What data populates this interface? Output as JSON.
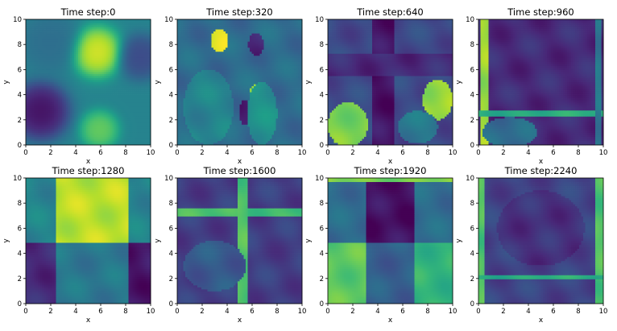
{
  "chart_data": {
    "type": "heatmap",
    "colormap": "viridis",
    "grid": false,
    "panels": [
      {
        "title": "Time step:0",
        "xlabel": "x",
        "ylabel": "y",
        "xlim": [
          0,
          10
        ],
        "ylim": [
          0,
          10
        ],
        "xticks": [
          "0",
          "2",
          "4",
          "6",
          "8",
          "10"
        ],
        "yticks": [
          "0",
          "2",
          "4",
          "6",
          "8",
          "10"
        ],
        "field": "smooth",
        "features": [
          {
            "x": 5.7,
            "y": 7.4,
            "value": 1.0,
            "spread": 1.3
          },
          {
            "x": 1.2,
            "y": 2.7,
            "value": 0.0,
            "spread": 1.5
          },
          {
            "x": 5.9,
            "y": 1.2,
            "value": 0.8,
            "spread": 1.0
          },
          {
            "x": 2.0,
            "y": 8.2,
            "value": 0.35,
            "spread": 1.6
          },
          {
            "x": 9.2,
            "y": 7.0,
            "value": 0.2,
            "spread": 1.2
          }
        ]
      },
      {
        "title": "Time step:320",
        "xlabel": "x",
        "ylabel": "y",
        "xlim": [
          0,
          10
        ],
        "ylim": [
          0,
          10
        ],
        "xticks": [
          "0",
          "2",
          "4",
          "6",
          "8",
          "10"
        ],
        "yticks": [
          "0",
          "2",
          "4",
          "6",
          "8",
          "10"
        ],
        "field": "regions",
        "background": 0.35,
        "features": [
          {
            "kind": "blob",
            "x": 3.4,
            "y": 8.3,
            "rx": 0.7,
            "ry": 0.9,
            "value": 0.95
          },
          {
            "kind": "blob",
            "x": 6.3,
            "y": 4.0,
            "rx": 0.5,
            "ry": 0.8,
            "value": 0.8
          },
          {
            "kind": "blob",
            "x": 5.4,
            "y": 2.6,
            "rx": 0.4,
            "ry": 1.0,
            "value": 0.1
          },
          {
            "kind": "blob",
            "x": 6.3,
            "y": 8.0,
            "rx": 0.6,
            "ry": 0.9,
            "value": 0.12
          },
          {
            "kind": "blob",
            "x": 6.8,
            "y": 2.5,
            "rx": 1.2,
            "ry": 2.5,
            "value": 0.5
          },
          {
            "kind": "blob",
            "x": 2.5,
            "y": 3.0,
            "rx": 2.0,
            "ry": 3.0,
            "value": 0.45
          }
        ]
      },
      {
        "title": "Time step:640",
        "xlabel": "x",
        "ylabel": "y",
        "xlim": [
          0,
          10
        ],
        "ylim": [
          0,
          10
        ],
        "xticks": [
          "0",
          "2",
          "4",
          "6",
          "8",
          "10"
        ],
        "yticks": [
          "0",
          "2",
          "4",
          "6",
          "8",
          "10"
        ],
        "field": "regions",
        "background": 0.22,
        "features": [
          {
            "kind": "vband",
            "x0": 3.6,
            "x1": 5.4,
            "value": 0.05
          },
          {
            "kind": "hband",
            "y0": 5.5,
            "y1": 7.3,
            "value": 0.12
          },
          {
            "kind": "blob",
            "x": 1.6,
            "y": 1.6,
            "rx": 1.6,
            "ry": 1.8,
            "value": 0.8
          },
          {
            "kind": "blob",
            "x": 8.8,
            "y": 3.6,
            "rx": 1.2,
            "ry": 1.6,
            "value": 0.85
          },
          {
            "kind": "blob",
            "x": 7.2,
            "y": 1.4,
            "rx": 1.6,
            "ry": 1.3,
            "value": 0.4
          }
        ]
      },
      {
        "title": "Time step:960",
        "xlabel": "x",
        "ylabel": "y",
        "xlim": [
          0,
          10
        ],
        "ylim": [
          0,
          10
        ],
        "xticks": [
          "0",
          "2",
          "4",
          "6",
          "8",
          "10"
        ],
        "yticks": [
          "0",
          "2",
          "4",
          "6",
          "8",
          "10"
        ],
        "field": "regions",
        "background": 0.12,
        "features": [
          {
            "kind": "vband",
            "x0": 0.1,
            "x1": 0.8,
            "value": 0.85
          },
          {
            "kind": "hband",
            "y0": 2.3,
            "y1": 2.8,
            "value": 0.62
          },
          {
            "kind": "vband",
            "x0": 9.3,
            "x1": 9.9,
            "value": 0.4
          },
          {
            "kind": "blob",
            "x": 2.5,
            "y": 1.0,
            "rx": 2.2,
            "ry": 1.2,
            "value": 0.35
          }
        ]
      },
      {
        "title": "Time step:1280",
        "xlabel": "x",
        "ylabel": "y",
        "xlim": [
          0,
          10
        ],
        "ylim": [
          0,
          10
        ],
        "xticks": [
          "0",
          "2",
          "4",
          "6",
          "8",
          "10"
        ],
        "yticks": [
          "0",
          "2",
          "4",
          "6",
          "8",
          "10"
        ],
        "field": "regions",
        "background": 0.45,
        "features": [
          {
            "kind": "rect",
            "x0": 2.4,
            "x1": 8.2,
            "y0": 4.8,
            "y1": 10.0,
            "value": 0.9
          },
          {
            "kind": "rect",
            "x0": 0.0,
            "x1": 2.4,
            "y0": 0.0,
            "y1": 4.8,
            "value": 0.12
          },
          {
            "kind": "rect",
            "x0": 8.2,
            "x1": 10.0,
            "y0": 0.0,
            "y1": 4.8,
            "value": 0.06
          },
          {
            "kind": "rect",
            "x0": 2.4,
            "x1": 8.2,
            "y0": 0.0,
            "y1": 4.8,
            "value": 0.4
          }
        ]
      },
      {
        "title": "Time step:1600",
        "xlabel": "x",
        "ylabel": "y",
        "xlim": [
          0,
          10
        ],
        "ylim": [
          0,
          10
        ],
        "xticks": [
          "0",
          "2",
          "4",
          "6",
          "8",
          "10"
        ],
        "yticks": [
          "0",
          "2",
          "4",
          "6",
          "8",
          "10"
        ],
        "field": "regions",
        "background": 0.18,
        "features": [
          {
            "kind": "hband",
            "y0": 6.9,
            "y1": 7.5,
            "value": 0.7
          },
          {
            "kind": "vband",
            "x0": 4.8,
            "x1": 5.6,
            "value": 0.72
          },
          {
            "kind": "blob",
            "x": 3.0,
            "y": 3.0,
            "rx": 2.5,
            "ry": 2.0,
            "value": 0.28
          }
        ]
      },
      {
        "title": "Time step:1920",
        "xlabel": "x",
        "ylabel": "y",
        "xlim": [
          0,
          10
        ],
        "ylim": [
          0,
          10
        ],
        "xticks": [
          "0",
          "2",
          "4",
          "6",
          "8",
          "10"
        ],
        "yticks": [
          "0",
          "2",
          "4",
          "6",
          "8",
          "10"
        ],
        "field": "regions",
        "background": 0.35,
        "features": [
          {
            "kind": "rect",
            "x0": 3.0,
            "x1": 6.9,
            "y0": 4.8,
            "y1": 9.6,
            "value": 0.04
          },
          {
            "kind": "rect",
            "x0": 0.0,
            "x1": 3.0,
            "y0": 0.0,
            "y1": 4.8,
            "value": 0.75
          },
          {
            "kind": "rect",
            "x0": 6.9,
            "x1": 10.0,
            "y0": 0.0,
            "y1": 4.8,
            "value": 0.65
          },
          {
            "kind": "hband",
            "y0": 9.6,
            "y1": 10.0,
            "value": 0.8
          },
          {
            "kind": "rect",
            "x0": 3.0,
            "x1": 6.9,
            "y0": 0.0,
            "y1": 4.8,
            "value": 0.3
          }
        ]
      },
      {
        "title": "Time step:2240",
        "xlabel": "x",
        "ylabel": "y",
        "xlim": [
          0,
          10
        ],
        "ylim": [
          0,
          10
        ],
        "xticks": [
          "0",
          "2",
          "4",
          "6",
          "8",
          "10"
        ],
        "yticks": [
          "0",
          "2",
          "4",
          "6",
          "8",
          "10"
        ],
        "field": "regions",
        "background": 0.2,
        "features": [
          {
            "kind": "vband",
            "x0": 0.0,
            "x1": 0.5,
            "value": 0.72
          },
          {
            "kind": "vband",
            "x0": 9.4,
            "x1": 10.0,
            "value": 0.72
          },
          {
            "kind": "hband",
            "y0": 1.9,
            "y1": 2.3,
            "value": 0.62
          },
          {
            "kind": "blob",
            "x": 5.0,
            "y": 6.0,
            "rx": 3.5,
            "ry": 3.0,
            "value": 0.14
          }
        ]
      }
    ]
  }
}
